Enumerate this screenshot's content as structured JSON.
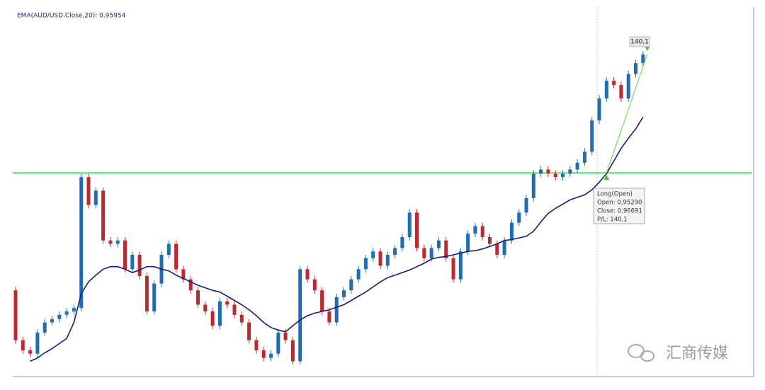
{
  "chart_data": {
    "type": "candlestick",
    "title": "EMA(AUD/USD.Close,20): 0,95954",
    "open": [
      0.939,
      0.9331,
      0.9319,
      0.9315,
      0.934,
      0.9352,
      0.9356,
      0.9361,
      0.9365,
      0.9369,
      0.9524,
      0.9491,
      0.9508,
      0.9449,
      0.9445,
      0.9449,
      0.9415,
      0.9432,
      0.9407,
      0.9365,
      0.9398,
      0.9432,
      0.9445,
      0.9415,
      0.9403,
      0.939,
      0.9373,
      0.9365,
      0.9348,
      0.9377,
      0.9373,
      0.9361,
      0.9352,
      0.9331,
      0.9319,
      0.931,
      0.9315,
      0.934,
      0.9331,
      0.9306,
      0.9415,
      0.9403,
      0.939,
      0.9365,
      0.9352,
      0.9382,
      0.939,
      0.9403,
      0.9415,
      0.9428,
      0.9436,
      0.9419,
      0.9432,
      0.944,
      0.9453,
      0.9482,
      0.944,
      0.9428,
      0.944,
      0.9449,
      0.9428,
      0.9403,
      0.9436,
      0.9457,
      0.9466,
      0.9453,
      0.9445,
      0.9432,
      0.9449,
      0.947,
      0.9482,
      0.9499,
      0.9528,
      0.9533,
      0.9528,
      0.9524,
      0.9528,
      0.9533,
      0.9541,
      0.9554,
      0.9591,
      0.9617,
      0.9638,
      0.9633,
      0.9617,
      0.9646,
      0.9659
    ],
    "high": [
      0.9394,
      0.9335,
      0.9323,
      0.9344,
      0.9356,
      0.936,
      0.9365,
      0.9369,
      0.9373,
      0.9528,
      0.9528,
      0.9512,
      0.9512,
      0.9453,
      0.9453,
      0.9453,
      0.9436,
      0.9436,
      0.9411,
      0.9402,
      0.9436,
      0.9449,
      0.9449,
      0.9419,
      0.9407,
      0.9394,
      0.9377,
      0.9369,
      0.9381,
      0.9381,
      0.9377,
      0.9365,
      0.9356,
      0.9335,
      0.9323,
      0.9319,
      0.9344,
      0.9344,
      0.9335,
      0.9419,
      0.9419,
      0.9407,
      0.9394,
      0.9369,
      0.9386,
      0.9394,
      0.9407,
      0.9419,
      0.9432,
      0.944,
      0.944,
      0.9436,
      0.9444,
      0.9457,
      0.9486,
      0.9486,
      0.9444,
      0.9444,
      0.9453,
      0.9453,
      0.9432,
      0.944,
      0.9461,
      0.947,
      0.947,
      0.9457,
      0.9449,
      0.9453,
      0.9474,
      0.9486,
      0.9503,
      0.9532,
      0.9537,
      0.9537,
      0.9532,
      0.9532,
      0.9537,
      0.9545,
      0.9558,
      0.9595,
      0.9621,
      0.9642,
      0.9642,
      0.9637,
      0.965,
      0.9663,
      0.9673
    ],
    "low": [
      0.9327,
      0.9315,
      0.9311,
      0.9311,
      0.9336,
      0.9348,
      0.9352,
      0.9357,
      0.9361,
      0.9365,
      0.9487,
      0.9487,
      0.9445,
      0.9441,
      0.9441,
      0.9411,
      0.9411,
      0.9403,
      0.9361,
      0.9361,
      0.9394,
      0.9428,
      0.9411,
      0.9399,
      0.9386,
      0.9369,
      0.9361,
      0.9344,
      0.9344,
      0.9369,
      0.9357,
      0.9348,
      0.9327,
      0.9315,
      0.9306,
      0.9306,
      0.9311,
      0.9327,
      0.9302,
      0.9302,
      0.9399,
      0.9386,
      0.9361,
      0.9348,
      0.9348,
      0.9378,
      0.9386,
      0.9399,
      0.9411,
      0.9424,
      0.9415,
      0.9415,
      0.9428,
      0.9436,
      0.9449,
      0.9436,
      0.9424,
      0.9424,
      0.9436,
      0.9424,
      0.9399,
      0.9399,
      0.9432,
      0.9453,
      0.9449,
      0.9441,
      0.9428,
      0.9428,
      0.9445,
      0.9466,
      0.9478,
      0.9495,
      0.9524,
      0.9524,
      0.952,
      0.952,
      0.9524,
      0.9529,
      0.9537,
      0.955,
      0.9587,
      0.9613,
      0.9629,
      0.9613,
      0.9613,
      0.9642,
      0.9655
    ],
    "close": [
      0.9331,
      0.9319,
      0.9315,
      0.934,
      0.9352,
      0.9356,
      0.9361,
      0.9365,
      0.9369,
      0.9524,
      0.9491,
      0.9508,
      0.9449,
      0.9445,
      0.9449,
      0.9415,
      0.9432,
      0.9407,
      0.9365,
      0.9398,
      0.9432,
      0.9445,
      0.9415,
      0.9403,
      0.939,
      0.9373,
      0.9365,
      0.9348,
      0.9377,
      0.9373,
      0.9361,
      0.9352,
      0.9331,
      0.9319,
      0.931,
      0.9315,
      0.934,
      0.9331,
      0.9306,
      0.9415,
      0.9403,
      0.939,
      0.9365,
      0.9352,
      0.9382,
      0.939,
      0.9403,
      0.9415,
      0.9428,
      0.9436,
      0.9419,
      0.9432,
      0.944,
      0.9453,
      0.9482,
      0.944,
      0.9428,
      0.944,
      0.9449,
      0.9428,
      0.9403,
      0.9436,
      0.9457,
      0.9466,
      0.9453,
      0.9445,
      0.9432,
      0.9449,
      0.947,
      0.9482,
      0.9499,
      0.9528,
      0.9533,
      0.9528,
      0.9524,
      0.9528,
      0.9533,
      0.9541,
      0.9554,
      0.9591,
      0.9617,
      0.9638,
      0.9633,
      0.9617,
      0.9646,
      0.9659,
      0.9669
    ],
    "ema": [
      null,
      null,
      0.9306,
      0.931,
      0.9316,
      0.9321,
      0.9327,
      0.9333,
      0.9352,
      0.9386,
      0.94,
      0.9408,
      0.9415,
      0.9418,
      0.9418,
      0.9415,
      0.9411,
      0.9414,
      0.9418,
      0.9418,
      0.9415,
      0.9413,
      0.9408,
      0.9404,
      0.94,
      0.9396,
      0.9393,
      0.939,
      0.9388,
      0.9383,
      0.9378,
      0.9373,
      0.9367,
      0.936,
      0.9352,
      0.9346,
      0.9343,
      0.9341,
      0.9348,
      0.9355,
      0.936,
      0.9363,
      0.9365,
      0.9367,
      0.937,
      0.9373,
      0.9378,
      0.9383,
      0.9388,
      0.9394,
      0.94,
      0.9405,
      0.9408,
      0.9411,
      0.9414,
      0.9418,
      0.9422,
      0.9427,
      0.9429,
      0.943,
      0.9432,
      0.9434,
      0.9436,
      0.9437,
      0.9439,
      0.9442,
      0.9445,
      0.9449,
      0.945,
      0.9452,
      0.9454,
      0.946,
      0.9471,
      0.9481,
      0.9487,
      0.9492,
      0.9497,
      0.95,
      0.9503,
      0.9509,
      0.9518,
      0.9528,
      0.9543,
      0.9558,
      0.957,
      0.9581,
      0.9595
    ],
    "up_color": "#1f6db5",
    "down_color": "#c3272e",
    "ema_color": "#1c1a78",
    "level_color": "#3ccf3c",
    "ylim": [
      0.9298,
      0.9721
    ],
    "trade": {
      "open": 0.9529,
      "close": 0.96691,
      "pl": "140,1",
      "tooltip": [
        "Long(Open)",
        "Open: 0,95290",
        "Close: 0,96691",
        "P/L: 140,1"
      ]
    },
    "watermark": "汇商传媒"
  }
}
